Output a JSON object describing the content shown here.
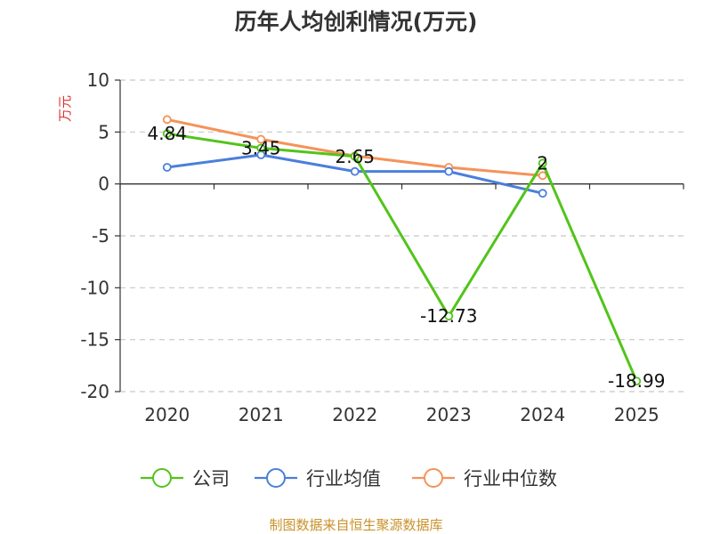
{
  "chart_data": {
    "type": "line",
    "title": "历年人均创利情况(万元)",
    "ylabel": "万元",
    "xlabel": "",
    "categories": [
      "2020",
      "2021",
      "2022",
      "2023",
      "2024",
      "2025"
    ],
    "ylim": [
      -20,
      10
    ],
    "yticks": [
      10,
      5,
      0,
      -5,
      -10,
      -15,
      -20
    ],
    "grid": true,
    "legend_position": "bottom",
    "series": [
      {
        "name": "公司",
        "color": "#52c41a",
        "values": [
          4.84,
          3.45,
          2.65,
          -12.73,
          2,
          -18.99
        ],
        "labels": [
          "4.84",
          "3.45",
          "2.65",
          "-12.73",
          "2",
          "-18.99"
        ]
      },
      {
        "name": "行业均值",
        "color": "#4a7fdc",
        "values": [
          1.6,
          2.8,
          1.2,
          1.2,
          -0.9,
          null
        ]
      },
      {
        "name": "行业中位数",
        "color": "#f4935a",
        "values": [
          6.2,
          4.3,
          2.7,
          1.6,
          0.8,
          null
        ]
      }
    ],
    "source": "制图数据来自恒生聚源数据库",
    "colors": {
      "axis": "#333333",
      "grid": "#c8c8c8",
      "ylabel": "#e03030",
      "source": "#c8922a"
    }
  }
}
